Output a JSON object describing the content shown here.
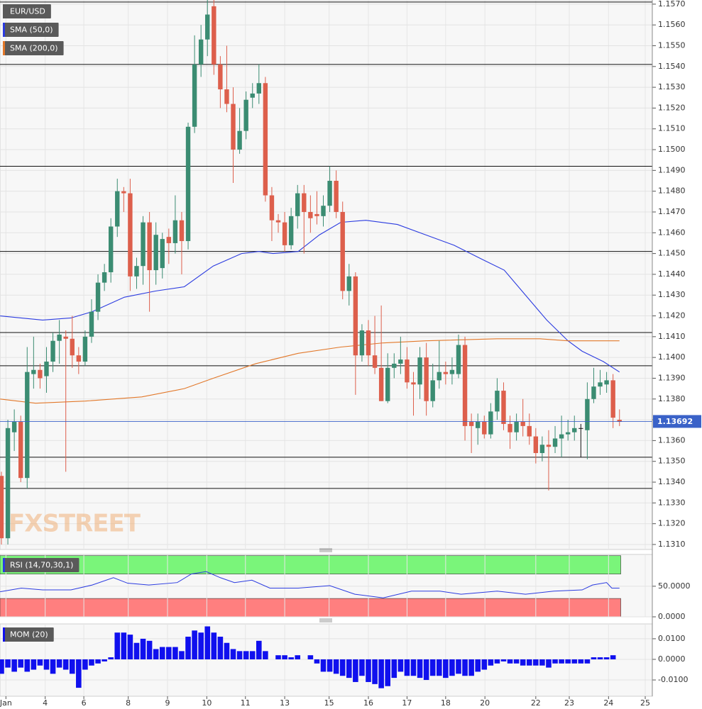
{
  "chart_data": [
    {
      "type": "candlestick",
      "name": "EUR/USD",
      "x": [
        0,
        1,
        2,
        3,
        4,
        5,
        6,
        7,
        8,
        9,
        10,
        11,
        12,
        13,
        14,
        15,
        16,
        17,
        18,
        19,
        20,
        21,
        22,
        23,
        24,
        25,
        26,
        27,
        28,
        29,
        30,
        31,
        32,
        33,
        34,
        35,
        36,
        37,
        38,
        39,
        40,
        41,
        42,
        43,
        44,
        45,
        46,
        47,
        48,
        49,
        50,
        51,
        52,
        53,
        54,
        55,
        56,
        57,
        58,
        59,
        60,
        61,
        62,
        63,
        64,
        65,
        66,
        67,
        68,
        69,
        70,
        71,
        72,
        73,
        74,
        75,
        76,
        77,
        78,
        79,
        80,
        81,
        82,
        83,
        84,
        85,
        86,
        87,
        88,
        89,
        90,
        91,
        92,
        93,
        94,
        95,
        96
      ],
      "open": [
        1.1343,
        1.1313,
        1.1364,
        1.1369,
        1.1342,
        1.1392,
        1.1394,
        1.1391,
        1.1398,
        1.1408,
        1.141,
        1.1409,
        1.1401,
        1.1398,
        1.141,
        1.1422,
        1.1436,
        1.1441,
        1.1463,
        1.148,
        1.1479,
        1.1439,
        1.1444,
        1.1465,
        1.1442,
        1.1443,
        1.1458,
        1.1455,
        1.1466,
        1.1456,
        1.1511,
        1.1541,
        1.1553,
        1.1569,
        1.1541,
        1.1529,
        1.1522,
        1.15,
        1.1509,
        1.1525,
        1.1527,
        1.1532,
        1.1478,
        1.1466,
        1.1465,
        1.1454,
        1.1468,
        1.1479,
        1.147,
        1.1469,
        1.1468,
        1.1473,
        1.1485,
        1.147,
        1.1432,
        1.1439,
        1.1401,
        1.1413,
        1.1401,
        1.1395,
        1.1379,
        1.1395,
        1.1397,
        1.1399,
        1.1388,
        1.1387,
        1.14,
        1.1379,
        1.1389,
        1.1393,
        1.1392,
        1.1392,
        1.1406,
        1.1369,
        1.1366,
        1.1369,
        1.1363,
        1.1374,
        1.1384,
        1.1368,
        1.1364,
        1.1369,
        1.1367,
        1.1362,
        1.1354,
        1.1358,
        1.1357,
        1.1361,
        1.1363,
        1.1364,
        1.1366,
        1.1365,
        1.138,
        1.1386,
        1.1387,
        1.1389,
        1.137
      ],
      "high": [
        1.1345,
        1.137,
        1.1375,
        1.1372,
        1.1405,
        1.141,
        1.1397,
        1.1405,
        1.1412,
        1.1418,
        1.1413,
        1.142,
        1.1405,
        1.1413,
        1.1428,
        1.144,
        1.1445,
        1.1467,
        1.1486,
        1.1482,
        1.1486,
        1.1448,
        1.1468,
        1.147,
        1.1465,
        1.146,
        1.1462,
        1.1478,
        1.147,
        1.1513,
        1.1555,
        1.156,
        1.1572,
        1.1572,
        1.1545,
        1.155,
        1.153,
        1.152,
        1.1528,
        1.1532,
        1.1541,
        1.1535,
        1.1482,
        1.1469,
        1.147,
        1.1472,
        1.1483,
        1.1483,
        1.1478,
        1.148,
        1.1478,
        1.1492,
        1.149,
        1.1475,
        1.1445,
        1.1441,
        1.1416,
        1.1418,
        1.142,
        1.1425,
        1.1402,
        1.1402,
        1.141,
        1.1405,
        1.1393,
        1.1405,
        1.1407,
        1.1397,
        1.1408,
        1.1398,
        1.14,
        1.1411,
        1.141,
        1.1373,
        1.1373,
        1.1372,
        1.1378,
        1.139,
        1.1388,
        1.1372,
        1.1373,
        1.138,
        1.1373,
        1.1366,
        1.1362,
        1.1365,
        1.1367,
        1.1372,
        1.137,
        1.1372,
        1.1368,
        1.1388,
        1.1395,
        1.1394,
        1.1393,
        1.1392,
        1.1375
      ],
      "low": [
        1.131,
        1.131,
        1.1355,
        1.134,
        1.1337,
        1.1385,
        1.1385,
        1.1383,
        1.1393,
        1.1397,
        1.1345,
        1.1395,
        1.1392,
        1.1396,
        1.1407,
        1.1418,
        1.1432,
        1.1436,
        1.1458,
        1.147,
        1.1432,
        1.1433,
        1.1435,
        1.1422,
        1.1435,
        1.1438,
        1.1445,
        1.145,
        1.144,
        1.1452,
        1.1508,
        1.1535,
        1.1545,
        1.1536,
        1.152,
        1.1518,
        1.1484,
        1.1498,
        1.1505,
        1.152,
        1.1522,
        1.1475,
        1.1456,
        1.146,
        1.1451,
        1.1452,
        1.1462,
        1.145,
        1.146,
        1.1464,
        1.1463,
        1.147,
        1.1467,
        1.1428,
        1.1425,
        1.1382,
        1.1398,
        1.1396,
        1.1392,
        1.1379,
        1.1378,
        1.139,
        1.1392,
        1.1385,
        1.1372,
        1.138,
        1.1372,
        1.1376,
        1.1385,
        1.1387,
        1.1387,
        1.139,
        1.136,
        1.1354,
        1.1358,
        1.1361,
        1.1361,
        1.137,
        1.1365,
        1.1356,
        1.136,
        1.1362,
        1.1358,
        1.1349,
        1.135,
        1.1336,
        1.1354,
        1.1352,
        1.136,
        1.136,
        1.1352,
        1.1351,
        1.1378,
        1.1382,
        1.1383,
        1.1366,
        1.1367
      ],
      "close": [
        1.1313,
        1.1366,
        1.1369,
        1.1342,
        1.1393,
        1.1394,
        1.139,
        1.1398,
        1.1408,
        1.1411,
        1.1409,
        1.1401,
        1.1398,
        1.141,
        1.1422,
        1.1436,
        1.1441,
        1.1463,
        1.148,
        1.1479,
        1.1439,
        1.1444,
        1.1465,
        1.1442,
        1.1459,
        1.1457,
        1.1455,
        1.1466,
        1.1456,
        1.1511,
        1.1541,
        1.1553,
        1.1565,
        1.1541,
        1.1529,
        1.1522,
        1.15,
        1.1509,
        1.1524,
        1.1527,
        1.1532,
        1.1478,
        1.1466,
        1.1465,
        1.1454,
        1.1468,
        1.1479,
        1.147,
        1.1467,
        1.1468,
        1.1473,
        1.1485,
        1.147,
        1.1432,
        1.1439,
        1.1401,
        1.1413,
        1.1401,
        1.1395,
        1.1379,
        1.1395,
        1.1397,
        1.1399,
        1.1388,
        1.1387,
        1.14,
        1.1379,
        1.1389,
        1.1393,
        1.1392,
        1.1394,
        1.1406,
        1.1367,
        1.1367,
        1.1369,
        1.1363,
        1.1374,
        1.1384,
        1.1368,
        1.1364,
        1.1369,
        1.1367,
        1.1362,
        1.1354,
        1.1358,
        1.1357,
        1.1361,
        1.1363,
        1.1364,
        1.1366,
        1.1366,
        1.138,
        1.1386,
        1.1388,
        1.1389,
        1.1371,
        1.1369
      ],
      "up_color": "#3b8c72",
      "down_color": "#dd5f4c",
      "flat_color": "#111111",
      "series": [
        {
          "name": "SMA (50,0)",
          "color": "#2b3be0",
          "x": [
            -0.2,
            6.4,
            10.8,
            14.1,
            19.1,
            24.0,
            28.4,
            32.9,
            37.3,
            40.0,
            42.2,
            46.1,
            49.4,
            52.7,
            56.6,
            61.5,
            65.9,
            70.3,
            74.8,
            78.1,
            81.4,
            84.7,
            88.0,
            90.2,
            93.5,
            96.0
          ],
          "values": [
            1.142,
            1.1418,
            1.1419,
            1.1422,
            1.1429,
            1.1432,
            1.1434,
            1.1444,
            1.145,
            1.1451,
            1.145,
            1.1451,
            1.1459,
            1.1465,
            1.1466,
            1.1464,
            1.1459,
            1.1454,
            1.1447,
            1.1442,
            1.143,
            1.1418,
            1.1408,
            1.1403,
            1.1398,
            1.1393
          ]
        },
        {
          "name": "SMA (200,0)",
          "color": "#e2782a",
          "x": [
            -0.2,
            5.3,
            13.0,
            21.8,
            28.4,
            32.9,
            39.5,
            46.1,
            52.7,
            59.3,
            65.9,
            77.0,
            83.6,
            88.0,
            96.0
          ],
          "values": [
            1.138,
            1.1378,
            1.1379,
            1.1381,
            1.1385,
            1.139,
            1.1397,
            1.1402,
            1.1405,
            1.1407,
            1.1408,
            1.1409,
            1.1409,
            1.1408,
            1.1408
          ]
        }
      ],
      "levels": [
        1.1571,
        1.1541,
        1.1492,
        1.1451,
        1.1412,
        1.1396,
        1.1352,
        1.1337
      ],
      "last_price": 1.13692,
      "last_price_color": "#3a62c8",
      "watermark": "FXSTREET",
      "ylim": [
        1.13076,
        1.1572
      ],
      "yticks": [
        {
          "value": 1.157,
          "label": "1.1570"
        },
        {
          "value": 1.156,
          "label": "1.1560"
        },
        {
          "value": 1.155,
          "label": "1.1550"
        },
        {
          "value": 1.154,
          "label": "1.1540"
        },
        {
          "value": 1.153,
          "label": "1.1530"
        },
        {
          "value": 1.152,
          "label": "1.1520"
        },
        {
          "value": 1.151,
          "label": "1.1510"
        },
        {
          "value": 1.15,
          "label": "1.1500"
        },
        {
          "value": 1.149,
          "label": "1.1490"
        },
        {
          "value": 1.148,
          "label": "1.1480"
        },
        {
          "value": 1.147,
          "label": "1.1470"
        },
        {
          "value": 1.146,
          "label": "1.1460"
        },
        {
          "value": 1.145,
          "label": "1.1450"
        },
        {
          "value": 1.144,
          "label": "1.1440"
        },
        {
          "value": 1.143,
          "label": "1.1430"
        },
        {
          "value": 1.142,
          "label": "1.1420"
        },
        {
          "value": 1.141,
          "label": "1.1410"
        },
        {
          "value": 1.14,
          "label": "1.1400"
        },
        {
          "value": 1.139,
          "label": "1.1390"
        },
        {
          "value": 1.138,
          "label": "1.1380"
        },
        {
          "value": 1.137,
          "label": "1.1370"
        },
        {
          "value": 1.136,
          "label": "1.1360"
        },
        {
          "value": 1.135,
          "label": "1.1350"
        },
        {
          "value": 1.134,
          "label": "1.1340"
        },
        {
          "value": 1.133,
          "label": "1.1330"
        },
        {
          "value": 1.132,
          "label": "1.1320"
        },
        {
          "value": 1.131,
          "label": "1.1310"
        }
      ],
      "grid": true
    },
    {
      "type": "line",
      "series": [
        {
          "name": "RSI (14,70,30,1)",
          "color": "#2b3be0",
          "x": [
            -0.2,
            3.1,
            6.4,
            10.8,
            14.1,
            17.4,
            19.6,
            22.9,
            27.3,
            29.5,
            31.8,
            34.0,
            36.2,
            38.9,
            41.7,
            46.1,
            51.0,
            54.9,
            59.3,
            63.7,
            68.1,
            71.4,
            77.0,
            81.4,
            85.8,
            90.2,
            91.8,
            94.0,
            94.8,
            96.0
          ],
          "values": [
            41,
            47,
            44,
            44,
            52,
            64,
            55,
            52,
            56,
            70,
            74,
            64,
            56,
            60,
            47,
            47,
            51,
            37,
            31,
            42,
            42,
            37,
            42,
            37,
            42,
            44,
            52,
            56,
            47,
            47
          ]
        }
      ],
      "bands": [
        {
          "range": [
            70,
            100
          ],
          "color": "#7af57a"
        },
        {
          "range": [
            0,
            30
          ],
          "color": "#ff7f7f"
        }
      ],
      "ylim": [
        0,
        102
      ],
      "yticks": [
        {
          "value": 50,
          "label": "50.0000"
        },
        {
          "value": 0,
          "label": "0.0000"
        }
      ],
      "grid": true
    },
    {
      "type": "bar",
      "x": [
        0,
        1,
        2,
        3,
        4,
        5,
        6,
        7,
        8,
        9,
        10,
        11,
        12,
        13,
        14,
        15,
        16,
        17,
        18,
        19,
        20,
        21,
        22,
        23,
        24,
        25,
        26,
        27,
        28,
        29,
        30,
        31,
        32,
        33,
        34,
        35,
        36,
        37,
        38,
        39,
        40,
        41,
        42,
        43,
        44,
        45,
        46,
        47,
        48,
        49,
        50,
        51,
        52,
        53,
        54,
        55,
        56,
        57,
        58,
        59,
        60,
        61,
        62,
        63,
        64,
        65,
        66,
        67,
        68,
        69,
        70,
        71,
        72,
        73,
        74,
        75,
        76,
        77,
        78,
        79,
        80,
        81,
        82,
        83,
        84,
        85,
        86,
        87,
        88,
        89,
        90,
        91,
        92,
        93,
        94,
        95,
        96
      ],
      "series": [
        {
          "name": "MOM (20)",
          "color": "#1010ee",
          "values": [
            -0.007,
            -0.004,
            -0.006,
            -0.004,
            -0.006,
            -0.005,
            -0.003,
            -0.005,
            -0.007,
            -0.004,
            -0.005,
            -0.007,
            -0.0138,
            -0.005,
            -0.003,
            -0.002,
            -0.001,
            0.001,
            0.013,
            0.013,
            0.012,
            0.008,
            0.01,
            0.009,
            0.005,
            0.006,
            0.006,
            0.006,
            0.004,
            0.011,
            0.014,
            0.013,
            0.016,
            0.013,
            0.011,
            0.008,
            0.005,
            0.004,
            0.004,
            0.004,
            0.009,
            0.004,
            0,
            0.002,
            0.002,
            0.001,
            0.002,
            0,
            0.002,
            -0.002,
            -0.006,
            -0.006,
            -0.007,
            -0.008,
            -0.009,
            -0.011,
            -0.008,
            -0.011,
            -0.012,
            -0.014,
            -0.013,
            -0.009,
            -0.006,
            -0.008,
            -0.008,
            -0.009,
            -0.01,
            -0.008,
            -0.008,
            -0.009,
            -0.008,
            -0.007,
            -0.008,
            -0.008,
            -0.006,
            -0.005,
            -0.003,
            -0.002,
            -0.001,
            -0.002,
            -0.002,
            -0.003,
            -0.003,
            -0.003,
            -0.003,
            -0.004,
            -0.002,
            -0.002,
            -0.002,
            -0.002,
            -0.002,
            -0.002,
            0.001,
            0.001,
            0.001,
            0.002,
            0
          ]
        }
      ],
      "ylim": [
        -0.0179,
        0.0172
      ],
      "yticks": [
        {
          "value": 0.01,
          "label": "0.0100"
        },
        {
          "value": 0,
          "label": "0.0000"
        },
        {
          "value": -0.01,
          "label": "-0.0100"
        }
      ],
      "xlim": [
        -0.22,
        101.1
      ],
      "xticks": [
        {
          "value": 0.7,
          "label": "Jan"
        },
        {
          "value": 6.8,
          "label": "4"
        },
        {
          "value": 12.8,
          "label": "6"
        },
        {
          "value": 19.7,
          "label": "8"
        },
        {
          "value": 25.8,
          "label": "9"
        },
        {
          "value": 31.9,
          "label": "10"
        },
        {
          "value": 37.9,
          "label": "11"
        },
        {
          "value": 44.0,
          "label": "13"
        },
        {
          "value": 50.9,
          "label": "15"
        },
        {
          "value": 57.0,
          "label": "16"
        },
        {
          "value": 63.0,
          "label": "17"
        },
        {
          "value": 69.0,
          "label": "18"
        },
        {
          "value": 75.1,
          "label": "20"
        },
        {
          "value": 83.0,
          "label": "22"
        },
        {
          "value": 88.2,
          "label": "23"
        },
        {
          "value": 94.3,
          "label": "24"
        },
        {
          "value": 100.0,
          "label": "25"
        }
      ],
      "grid": true
    }
  ]
}
